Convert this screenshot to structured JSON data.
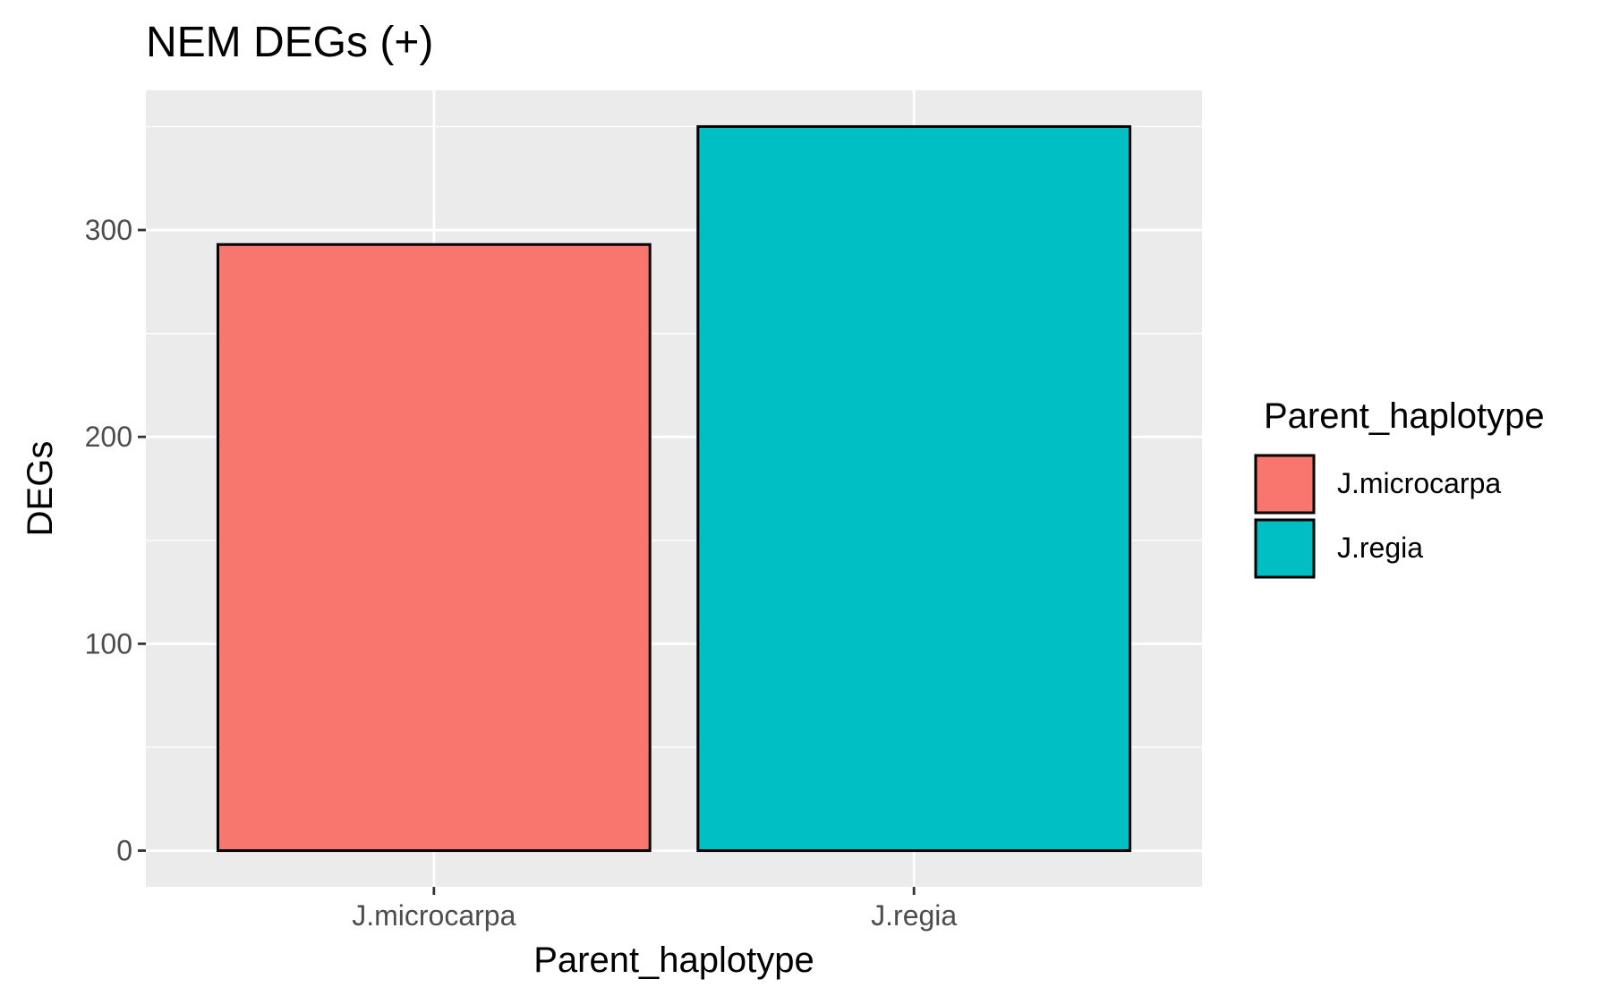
{
  "chart_data": {
    "type": "bar",
    "title": "NEM DEGs (+)",
    "xlabel": "Parent_haplotype",
    "ylabel": "DEGs",
    "categories": [
      "J.microcarpa",
      "J.regia"
    ],
    "values": [
      293,
      350
    ],
    "colors": [
      "#F8766D",
      "#00BFC4"
    ],
    "ylim": [
      -17.5,
      367.5
    ],
    "yticks": [
      0,
      100,
      200,
      300
    ],
    "ytick_labels": [
      "0",
      "100",
      "200",
      "300"
    ],
    "grid": true,
    "legend": {
      "title": "Parent_haplotype",
      "position": "right",
      "entries": [
        "J.microcarpa",
        "J.regia"
      ]
    }
  }
}
